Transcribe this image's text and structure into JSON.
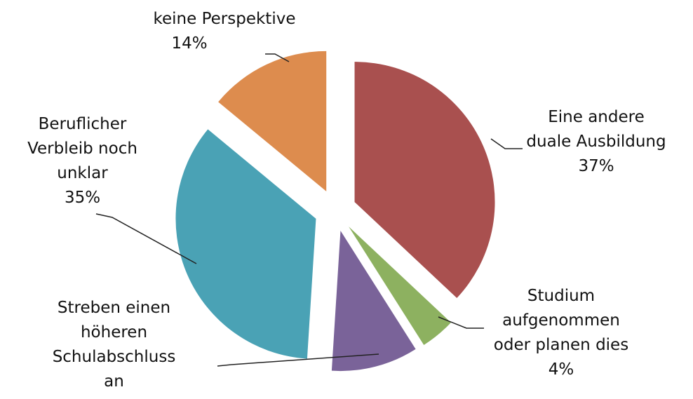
{
  "chart_data": {
    "type": "pie",
    "categories": [
      "Eine andere duale Ausbildung",
      "Studium aufgenommen oder planen dies",
      "Streben einen höheren Schulabschluss an",
      "Beruflicher Verbleib noch unklar",
      "keine Perspektive"
    ],
    "values": [
      37,
      4,
      10,
      35,
      14
    ],
    "value_labels": [
      "37%",
      "4%",
      null,
      "35%",
      "14%"
    ],
    "colors": [
      "#a9504f",
      "#8db160",
      "#7a6399",
      "#4aa2b5",
      "#dd8c4e"
    ]
  }
}
